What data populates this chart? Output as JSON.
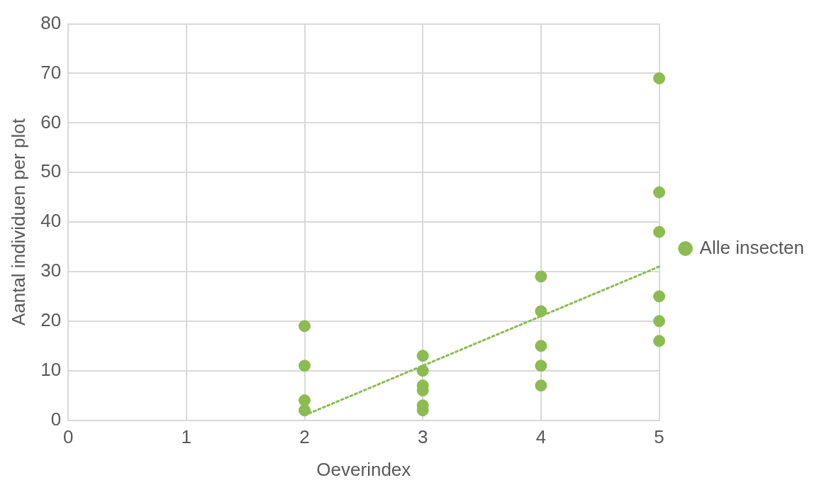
{
  "chart_data": {
    "type": "scatter",
    "xlabel": "Oeverindex",
    "ylabel": "Aantal individuen per plot",
    "xlim": [
      0,
      5
    ],
    "xticks": [
      0,
      1,
      2,
      3,
      4,
      5
    ],
    "ylim": [
      0,
      80
    ],
    "yticks": [
      0,
      10,
      20,
      30,
      40,
      50,
      60,
      70,
      80
    ],
    "grid": true,
    "legend": "right",
    "marker": "circle",
    "series": [
      {
        "name": "Alle insecten",
        "color": "#8cbb52",
        "x": [
          2,
          2,
          2,
          2,
          3,
          3,
          3,
          3,
          3,
          3,
          4,
          4,
          4,
          4,
          4,
          5,
          5,
          5,
          5,
          5,
          5
        ],
        "values": [
          19,
          11,
          4,
          2,
          13,
          10,
          7,
          6,
          3,
          2,
          29,
          22,
          15,
          11,
          7,
          69,
          46,
          38,
          25,
          20,
          16
        ]
      },
      {
        "type": "line",
        "color": "#8cbb52",
        "line_style": "dotted",
        "marker": "none",
        "x": [
          2,
          5
        ],
        "values": [
          1,
          31
        ]
      }
    ]
  }
}
